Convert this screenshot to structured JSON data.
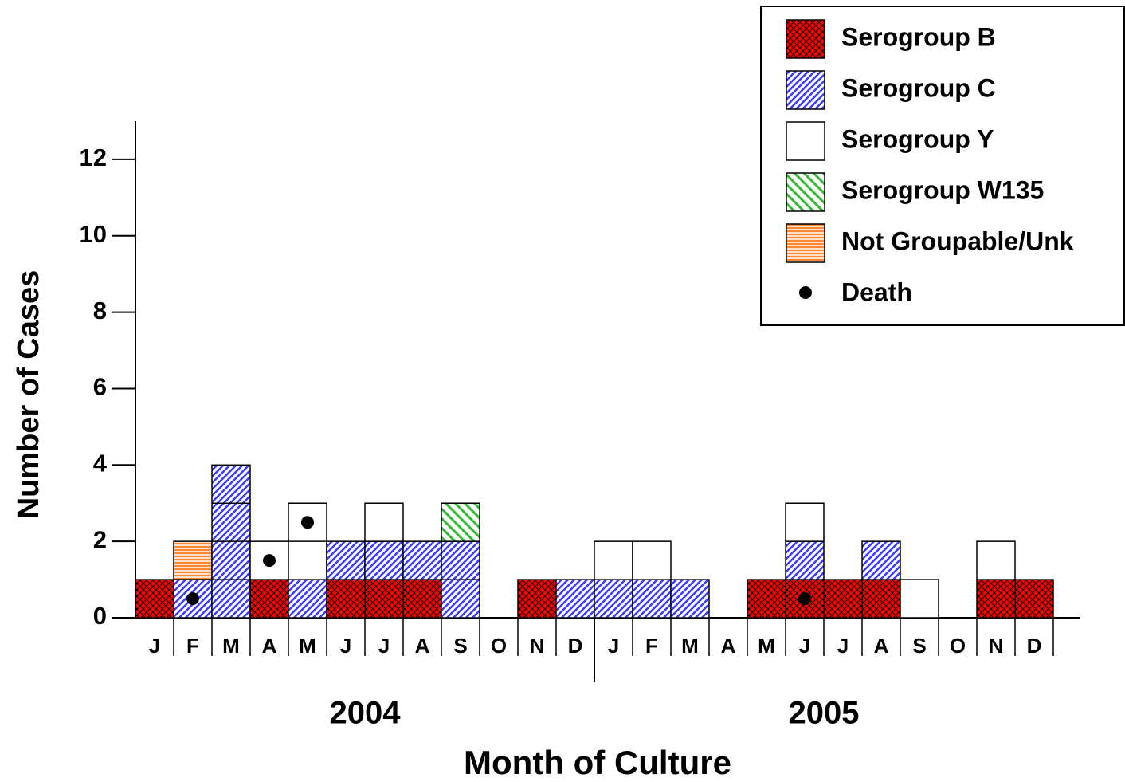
{
  "chart_data": {
    "type": "stacked_bar",
    "y_label": "Number of Cases",
    "x_label": "Month of Culture",
    "categories": [
      "J",
      "F",
      "M",
      "A",
      "M",
      "J",
      "J",
      "A",
      "S",
      "O",
      "N",
      "D",
      "J",
      "F",
      "M",
      "A",
      "M",
      "J",
      "J",
      "A",
      "S",
      "O",
      "N",
      "D"
    ],
    "x_groups": [
      "2004",
      "2005"
    ],
    "ylim": [
      0,
      13
    ],
    "yticks": [
      0,
      2,
      4,
      6,
      8,
      10,
      12
    ],
    "series": [
      {
        "name": "Serogroup B",
        "color": "#ff0000",
        "pattern": "crosshatch",
        "values": [
          1,
          0,
          0,
          1,
          0,
          1,
          1,
          1,
          0,
          0,
          1,
          0,
          0,
          0,
          0,
          0,
          1,
          1,
          1,
          1,
          0,
          0,
          1,
          1
        ]
      },
      {
        "name": "Serogroup C",
        "color": "#3b3bff",
        "pattern": "diagonal",
        "values": [
          0,
          1,
          4,
          0,
          1,
          1,
          1,
          1,
          2,
          0,
          0,
          1,
          1,
          1,
          1,
          0,
          0,
          1,
          0,
          1,
          0,
          0,
          0,
          0
        ]
      },
      {
        "name": "Serogroup Y",
        "color": "#ffffff",
        "pattern": "none",
        "values": [
          0,
          0,
          0,
          1,
          2,
          0,
          1,
          0,
          0,
          0,
          0,
          0,
          1,
          1,
          0,
          0,
          0,
          1,
          0,
          0,
          1,
          0,
          1,
          0
        ]
      },
      {
        "name": "Serogroup W135",
        "color": "#33bb33",
        "pattern": "antidiagonal",
        "values": [
          0,
          0,
          0,
          0,
          0,
          0,
          0,
          0,
          1,
          0,
          0,
          0,
          0,
          0,
          0,
          0,
          0,
          0,
          0,
          0,
          0,
          0,
          0,
          0
        ]
      },
      {
        "name": "Not Groupable/Unk",
        "color": "#ff8833",
        "pattern": "horizontal",
        "values": [
          0,
          1,
          0,
          0,
          0,
          0,
          0,
          0,
          0,
          0,
          0,
          0,
          0,
          0,
          0,
          0,
          0,
          0,
          0,
          0,
          0,
          0,
          0,
          0
        ]
      },
      {
        "name": "Death",
        "color": "#000000",
        "marker": "dot",
        "values": [
          null,
          0.5,
          null,
          1.5,
          2.5,
          null,
          null,
          null,
          null,
          null,
          null,
          null,
          null,
          null,
          null,
          null,
          null,
          0.5,
          null,
          null,
          null,
          null,
          null,
          null
        ]
      }
    ]
  }
}
